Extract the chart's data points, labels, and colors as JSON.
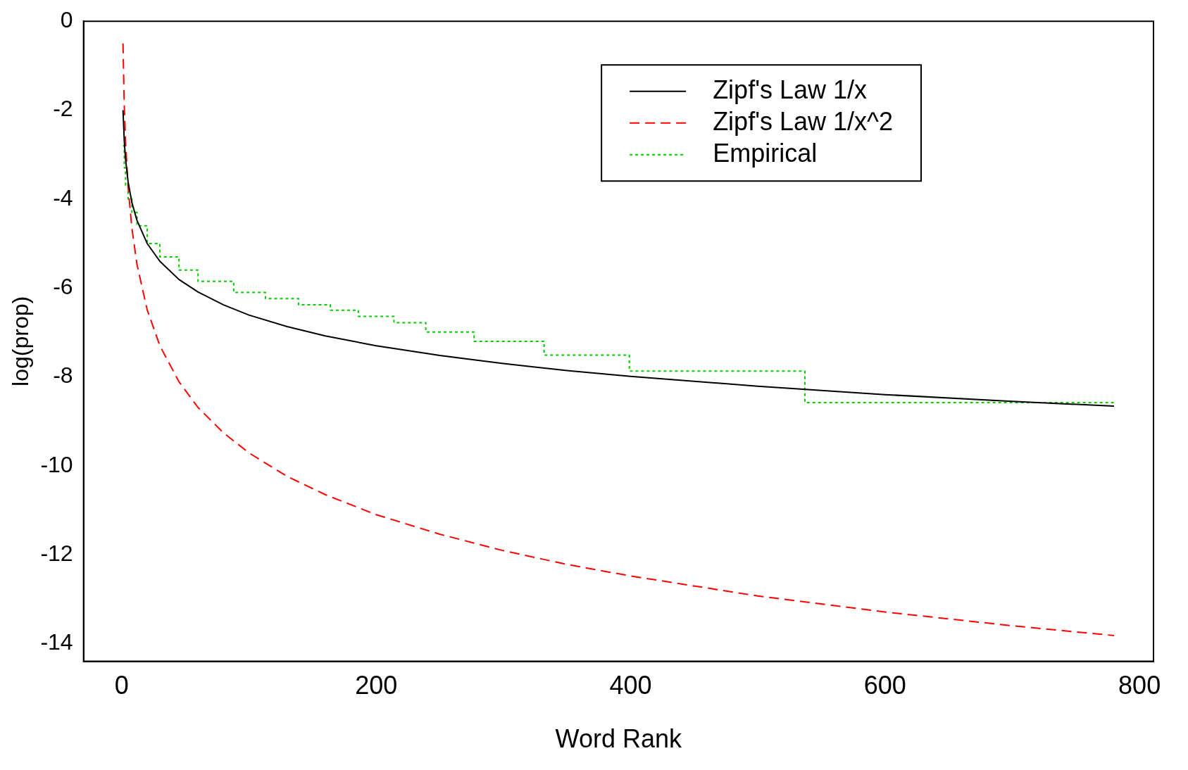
{
  "chart_data": {
    "type": "line",
    "xlabel": "Word Rank",
    "ylabel": "log(prop)",
    "xlim": [
      -30,
      811
    ],
    "xticks": [
      0,
      200,
      400,
      600,
      800
    ],
    "ylim": [
      -14.4,
      0
    ],
    "yticks": [
      -14,
      -12,
      -10,
      -8,
      -6,
      -4,
      -2,
      0
    ],
    "grid": false,
    "legend": "top right",
    "marker": "none",
    "series": [
      {
        "name": "Zipf's Law 1/x",
        "type": "line",
        "line_style": "solid",
        "color": "#000000",
        "x": [
          1,
          2,
          3,
          5,
          8,
          12,
          20,
          30,
          45,
          60,
          80,
          100,
          130,
          160,
          200,
          250,
          300,
          350,
          400,
          500,
          600,
          700,
          780
        ],
        "values": [
          -2,
          -2.69,
          -3.1,
          -3.61,
          -4.08,
          -4.48,
          -5.0,
          -5.4,
          -5.81,
          -6.09,
          -6.38,
          -6.61,
          -6.87,
          -7.08,
          -7.3,
          -7.52,
          -7.7,
          -7.86,
          -7.99,
          -8.21,
          -8.4,
          -8.55,
          -8.66
        ]
      },
      {
        "name": "Zipf's Law 1/x^2",
        "type": "line",
        "line_style": "dashed",
        "color": "#ff0000",
        "x": [
          1,
          2,
          3,
          5,
          8,
          12,
          20,
          30,
          45,
          60,
          80,
          100,
          130,
          160,
          200,
          250,
          300,
          350,
          400,
          500,
          600,
          700,
          780
        ],
        "values": [
          -0.5,
          -1.89,
          -2.7,
          -3.72,
          -4.66,
          -5.47,
          -6.49,
          -7.3,
          -8.11,
          -8.69,
          -9.26,
          -9.71,
          -10.24,
          -10.65,
          -11.1,
          -11.54,
          -11.91,
          -12.22,
          -12.48,
          -12.93,
          -13.29,
          -13.6,
          -13.82
        ]
      },
      {
        "name": "Empirical",
        "type": "step",
        "line_style": "dotted",
        "color": "#00cc00",
        "x": [
          1,
          2,
          3,
          5,
          8,
          12,
          20,
          30,
          45,
          60,
          88,
          113,
          139,
          164,
          186,
          214,
          239,
          277,
          332,
          399,
          537,
          780
        ],
        "values": [
          -2.8,
          -3.3,
          -3.7,
          -4.0,
          -4.3,
          -4.6,
          -5.0,
          -5.3,
          -5.6,
          -5.85,
          -6.1,
          -6.24,
          -6.38,
          -6.5,
          -6.64,
          -6.78,
          -6.99,
          -7.2,
          -7.51,
          -7.87,
          -8.58,
          -8.58
        ]
      }
    ]
  }
}
